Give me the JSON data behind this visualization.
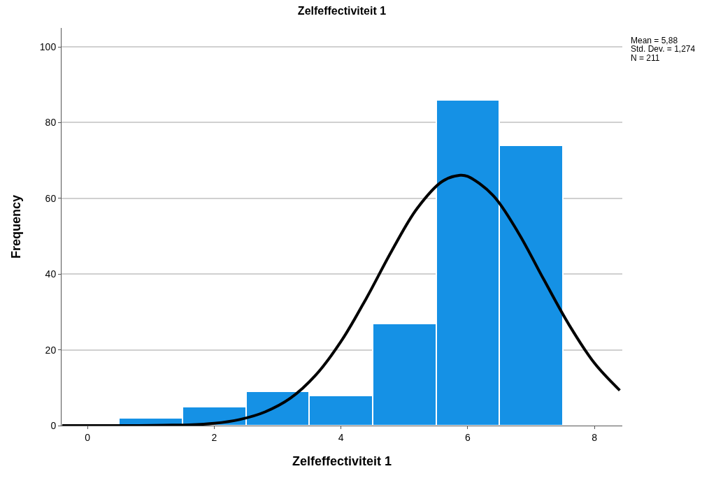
{
  "chart_data": {
    "type": "histogram",
    "title": "Zelfeffectiviteit 1",
    "xlabel": "Zelfeffectiviteit 1",
    "ylabel": "Frequency",
    "bins": [
      0.5,
      1.5,
      2.5,
      3.5,
      4.5,
      5.5,
      6.5,
      7.5
    ],
    "values": [
      2,
      5,
      9,
      8,
      27,
      86,
      74
    ],
    "color": "#1591e5",
    "series": [
      {
        "type": "line",
        "color": "#000000",
        "x": [
          -0.4,
          0,
          0.4,
          0.8,
          1.2,
          1.6,
          2,
          2.4,
          2.8,
          3.2,
          3.6,
          4,
          4.4,
          4.8,
          5.2,
          5.6,
          5.88,
          6,
          6.4,
          6.8,
          7.2,
          7.6,
          8,
          8.4
        ],
        "values": [
          0,
          0,
          0,
          0,
          0.1,
          0.2,
          0.6,
          1.6,
          3.6,
          7.2,
          13.3,
          22.2,
          33.6,
          46.1,
          57.3,
          64.5,
          66.1,
          65.8,
          60.8,
          50.9,
          38.6,
          26.6,
          16.5,
          9.3
        ]
      }
    ],
    "xlim": [
      -0.41,
      8.44
    ],
    "xticks": [
      0,
      2,
      4,
      6,
      8
    ],
    "ylim": [
      0,
      105
    ],
    "yticks": [
      0,
      20,
      40,
      60,
      80,
      100
    ],
    "grid": "y",
    "legend": false,
    "marker": "none",
    "line_style": "solid",
    "annotations": [
      "Mean = 5,88",
      "Std. Dev. = 1,274",
      "N = 211"
    ]
  }
}
